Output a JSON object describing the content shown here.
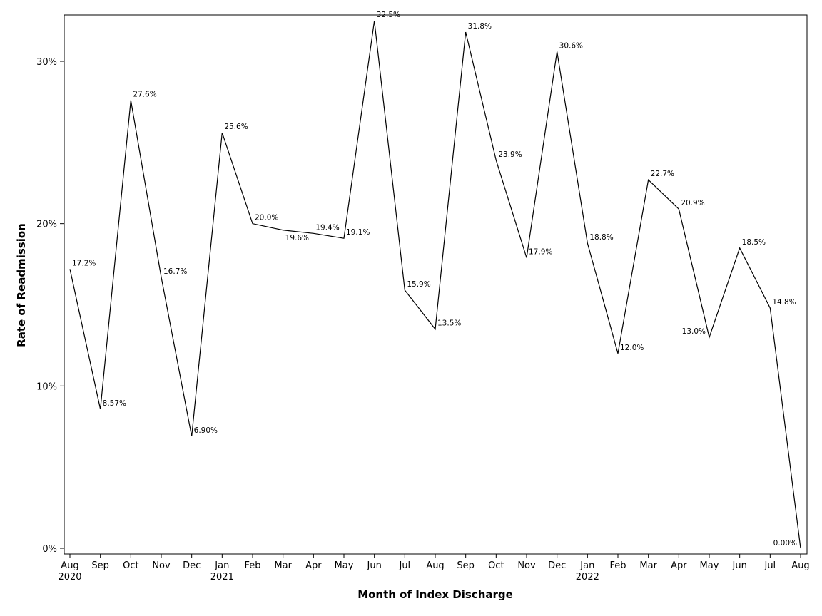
{
  "chart_data": {
    "type": "line",
    "title": "",
    "xlabel": "Month of Index Discharge",
    "ylabel": "Rate of Readmission",
    "ylim": [
      0,
      0.32
    ],
    "y_ticks": [
      0,
      0.1,
      0.2,
      0.3
    ],
    "y_tick_labels": [
      "0%",
      "10%",
      "20%",
      "30%"
    ],
    "grid": false,
    "legend": "none",
    "line_color": "#000000",
    "points": [
      {
        "month": "Aug",
        "year": "2020",
        "value": 0.172,
        "label": "17.2%"
      },
      {
        "month": "Sep",
        "year": "",
        "value": 0.0857,
        "label": "8.57%"
      },
      {
        "month": "Oct",
        "year": "",
        "value": 0.276,
        "label": "27.6%"
      },
      {
        "month": "Nov",
        "year": "",
        "value": 0.167,
        "label": "16.7%"
      },
      {
        "month": "Dec",
        "year": "",
        "value": 0.069,
        "label": "6.90%"
      },
      {
        "month": "Jan",
        "year": "2021",
        "value": 0.256,
        "label": "25.6%"
      },
      {
        "month": "Feb",
        "year": "",
        "value": 0.2,
        "label": "20.0%"
      },
      {
        "month": "Mar",
        "year": "",
        "value": 0.196,
        "label": "19.6%"
      },
      {
        "month": "Apr",
        "year": "",
        "value": 0.194,
        "label": "19.4%"
      },
      {
        "month": "May",
        "year": "",
        "value": 0.191,
        "label": "19.1%"
      },
      {
        "month": "Jun",
        "year": "",
        "value": 0.325,
        "label": "32.5%"
      },
      {
        "month": "Jul",
        "year": "",
        "value": 0.159,
        "label": "15.9%"
      },
      {
        "month": "Aug",
        "year": "",
        "value": 0.135,
        "label": "13.5%"
      },
      {
        "month": "Sep",
        "year": "",
        "value": 0.318,
        "label": "31.8%"
      },
      {
        "month": "Oct",
        "year": "",
        "value": 0.239,
        "label": "23.9%"
      },
      {
        "month": "Nov",
        "year": "",
        "value": 0.179,
        "label": "17.9%"
      },
      {
        "month": "Dec",
        "year": "",
        "value": 0.306,
        "label": "30.6%"
      },
      {
        "month": "Jan",
        "year": "2022",
        "value": 0.188,
        "label": "18.8%"
      },
      {
        "month": "Feb",
        "year": "",
        "value": 0.12,
        "label": "12.0%"
      },
      {
        "month": "Mar",
        "year": "",
        "value": 0.227,
        "label": "22.7%"
      },
      {
        "month": "Apr",
        "year": "",
        "value": 0.209,
        "label": "20.9%"
      },
      {
        "month": "May",
        "year": "",
        "value": 0.13,
        "label": "13.0%"
      },
      {
        "month": "Jun",
        "year": "",
        "value": 0.185,
        "label": "18.5%"
      },
      {
        "month": "Jul",
        "year": "",
        "value": 0.148,
        "label": "14.8%"
      },
      {
        "month": "Aug",
        "year": "",
        "value": 0.0,
        "label": "0.00%"
      }
    ]
  }
}
